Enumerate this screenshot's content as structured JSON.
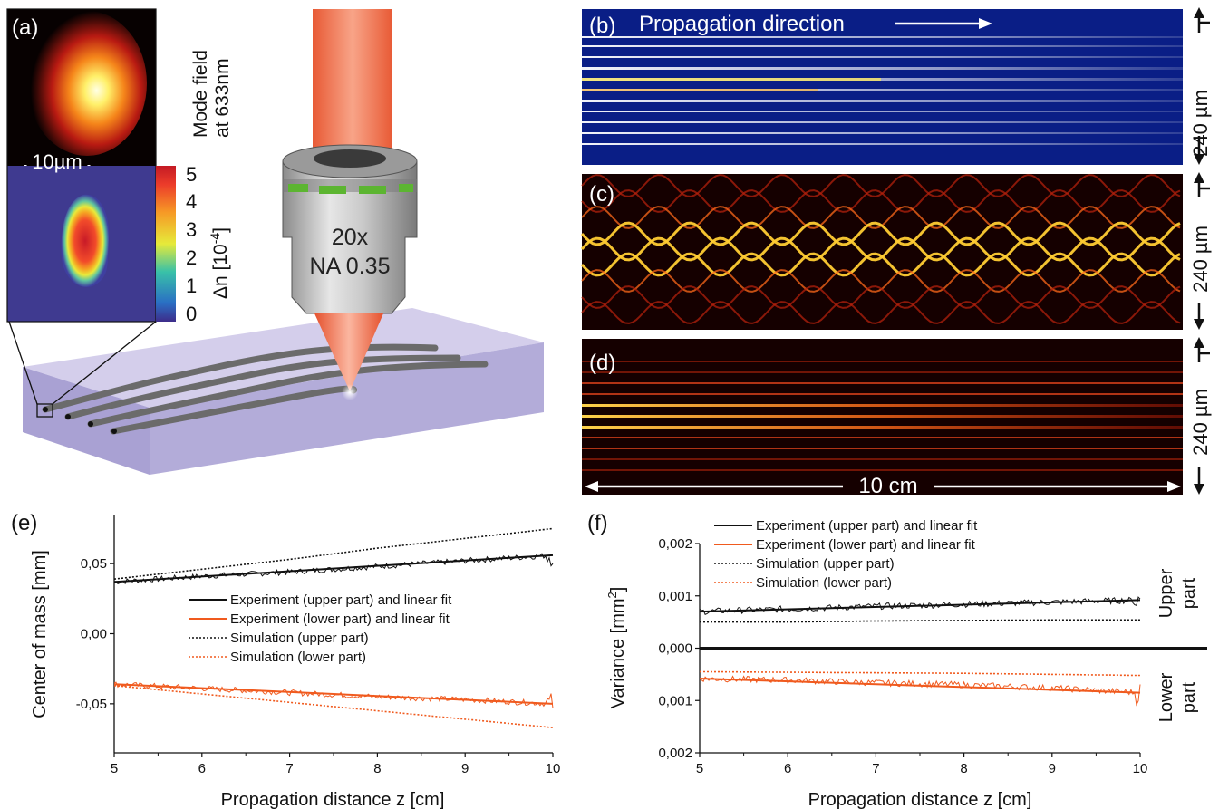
{
  "figure": {
    "panel_labels": {
      "a": "(a)",
      "b": "(b)",
      "c": "(c)",
      "d": "(d)",
      "e": "(e)",
      "f": "(f)"
    },
    "mode_field_label_line1": "Mode field",
    "mode_field_label_line2": "at 633nm",
    "scale_bar_label": "10µm",
    "colorbar_ticks": [
      "5",
      "4",
      "3",
      "2",
      "1",
      "0"
    ],
    "colorbar_label_main": "Δn [10",
    "colorbar_label_exp": "-4",
    "colorbar_label_end": "]",
    "objective_mag": "20x",
    "objective_na": "NA 0.35",
    "propagation_label": "Propagation direction",
    "side_scale_label": "240 µm",
    "length_label": "10 cm",
    "colors": {
      "laser": "#e8633f",
      "glass": "#b9b2dc",
      "blue_bg": "#0a1e86",
      "red_bg": "#150000",
      "orange": "#f05a1e",
      "black": "#111111",
      "objective_band": "#5cb531"
    }
  },
  "chart_data": [
    {
      "type": "line",
      "panel": "(e)",
      "title": "",
      "xlabel": "Propagation distance z [cm]",
      "ylabel": "Center of mass [mm]",
      "xlim": [
        5,
        10
      ],
      "ylim": [
        -0.085,
        0.085
      ],
      "xticks": [
        "5",
        "6",
        "7",
        "8",
        "9",
        "10"
      ],
      "yticks": [
        "0,05",
        "0,00",
        "-0,05"
      ],
      "ytick_values": [
        0.05,
        0.0,
        -0.05
      ],
      "legend_position": "center",
      "series": [
        {
          "name": "Experiment (upper part) and linear fit",
          "style": "solid",
          "color": "#111111",
          "x": [
            5,
            6,
            7,
            8,
            9,
            10
          ],
          "y": [
            0.037,
            0.041,
            0.044,
            0.048,
            0.052,
            0.056
          ]
        },
        {
          "name": "Experiment (lower part) and linear fit",
          "style": "solid",
          "color": "#f05a1e",
          "x": [
            5,
            6,
            7,
            8,
            9,
            10
          ],
          "y": [
            -0.036,
            -0.039,
            -0.042,
            -0.045,
            -0.047,
            -0.05
          ]
        },
        {
          "name": "Simulation (upper part)",
          "style": "dotted",
          "color": "#111111",
          "x": [
            5,
            6,
            7,
            8,
            9,
            10
          ],
          "y": [
            0.039,
            0.046,
            0.053,
            0.061,
            0.068,
            0.075
          ]
        },
        {
          "name": "Simulation (lower part)",
          "style": "dotted",
          "color": "#f05a1e",
          "x": [
            5,
            6,
            7,
            8,
            9,
            10
          ],
          "y": [
            -0.037,
            -0.043,
            -0.049,
            -0.055,
            -0.061,
            -0.067
          ]
        }
      ]
    },
    {
      "type": "line",
      "panel": "(f)",
      "title": "",
      "xlabel": "Propagation distance z [cm]",
      "ylabel_main": "Variance [mm",
      "ylabel_exp": "2",
      "ylabel_end": "]",
      "xlim": [
        5,
        10
      ],
      "ylim": [
        -0.002,
        0.002
      ],
      "xticks": [
        "5",
        "6",
        "7",
        "8",
        "9",
        "10"
      ],
      "yticks": [
        "0,002",
        "0,001",
        "0,000",
        "0,001",
        "0,002"
      ],
      "ytick_values": [
        0.002,
        0.001,
        0.0,
        -0.001,
        -0.002
      ],
      "region_labels": {
        "upper_1": "Upper",
        "upper_2": "part",
        "lower_1": "Lower",
        "lower_2": "part"
      },
      "legend_position": "top-left",
      "series": [
        {
          "name": "Experiment (upper part) and linear fit",
          "style": "solid",
          "color": "#111111",
          "x": [
            5,
            6,
            7,
            8,
            9,
            10
          ],
          "y": [
            0.0007,
            0.00075,
            0.0008,
            0.00084,
            0.00088,
            0.00092
          ]
        },
        {
          "name": "Experiment (lower part) and linear fit",
          "style": "solid",
          "color": "#f05a1e",
          "x": [
            5,
            6,
            7,
            8,
            9,
            10
          ],
          "y": [
            -0.00058,
            -0.00061,
            -0.00066,
            -0.0007,
            -0.00076,
            -0.00085
          ]
        },
        {
          "name": "Simulation (upper part)",
          "style": "dotted",
          "color": "#111111",
          "x": [
            5,
            6,
            7,
            8,
            9,
            10
          ],
          "y": [
            0.0005,
            0.0005,
            0.00052,
            0.00053,
            0.00054,
            0.00054
          ]
        },
        {
          "name": "Simulation (lower part)",
          "style": "dotted",
          "color": "#f05a1e",
          "x": [
            5,
            6,
            7,
            8,
            9,
            10
          ],
          "y": [
            -0.00045,
            -0.00046,
            -0.00047,
            -0.00048,
            -0.0005,
            -0.00052
          ]
        }
      ]
    }
  ]
}
